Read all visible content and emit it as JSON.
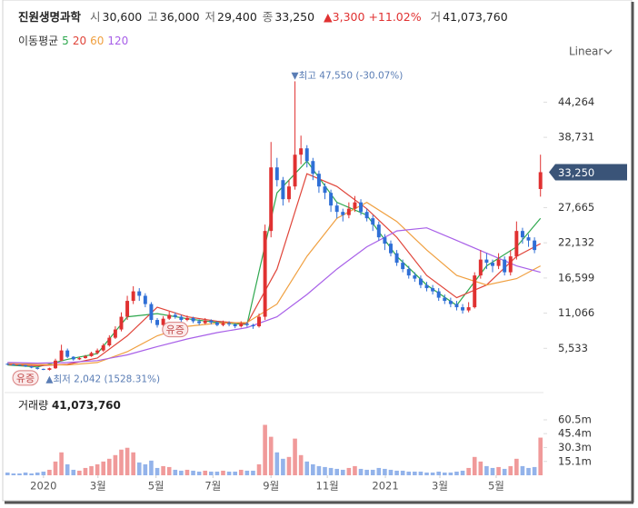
{
  "chart_data": {
    "type": "candlestick",
    "name": "진원생명과학",
    "header": [
      {
        "label": "시",
        "value": "30,600"
      },
      {
        "label": "고",
        "value": "36,000"
      },
      {
        "label": "저",
        "value": "29,400"
      },
      {
        "label": "종",
        "value": "33,250"
      }
    ],
    "change_arrow": "▲",
    "change": "3,300",
    "change_pct": "+11.02%",
    "volume_short_label": "거",
    "volume_today": "41,073,760",
    "ma_title": "이동평균",
    "scale_mode": "Linear",
    "up_color": "#e03131",
    "down_color": "#2f6fd6",
    "volume_up_color": "#f09a9a",
    "volume_down_color": "#93b3ea",
    "open": [
      3100,
      3000,
      2950,
      2900,
      2700,
      2500,
      2300,
      2150,
      2400,
      3600,
      5200,
      4200,
      3800,
      4000,
      4300,
      4800,
      5200,
      6000,
      7200,
      8500,
      10500,
      13000,
      14500,
      13800,
      12500,
      10000,
      9200,
      10200,
      10800,
      10500,
      10000,
      10300,
      9800,
      9500,
      9900,
      9600,
      9200,
      9500,
      9300,
      9000,
      9400,
      9200,
      9000,
      10500,
      24000,
      34000,
      32000,
      29000,
      31000,
      36000,
      37000,
      35000,
      33000,
      31000,
      30000,
      28000,
      27000,
      26500,
      27500,
      28500,
      27000,
      26000,
      25000,
      23000,
      22000,
      20500,
      19000,
      18000,
      17000,
      16500,
      15500,
      15000,
      14500,
      13500,
      13000,
      12500,
      12000,
      11500,
      12000,
      17000,
      19500,
      19000,
      18500,
      19500,
      17500,
      20000,
      24000,
      23000,
      22500,
      30600
    ],
    "high": [
      3200,
      3100,
      3000,
      2950,
      2750,
      2550,
      2350,
      2500,
      3900,
      6100,
      5500,
      4300,
      4200,
      4500,
      5000,
      5500,
      6300,
      7600,
      9000,
      11200,
      13800,
      15300,
      15000,
      14200,
      12800,
      10300,
      10600,
      11300,
      11200,
      10800,
      10700,
      10500,
      10100,
      10300,
      10100,
      9800,
      9900,
      9800,
      9500,
      9800,
      9700,
      9400,
      11000,
      25000,
      38000,
      35500,
      32500,
      32000,
      47550,
      39000,
      37500,
      35500,
      33500,
      31500,
      30500,
      28500,
      27500,
      28500,
      29500,
      29000,
      27500,
      26500,
      25500,
      23500,
      22500,
      21000,
      19500,
      18500,
      17500,
      17000,
      16000,
      15500,
      15000,
      14000,
      13500,
      13000,
      12500,
      12800,
      17500,
      21000,
      20500,
      19500,
      20500,
      20000,
      21000,
      25500,
      24500,
      23500,
      23000,
      36000
    ],
    "low": [
      2900,
      2850,
      2800,
      2600,
      2400,
      2200,
      2100,
      2042,
      2300,
      3500,
      4000,
      3600,
      3700,
      3900,
      4200,
      4600,
      5000,
      5800,
      7000,
      8200,
      10000,
      12500,
      13000,
      12000,
      9500,
      8800,
      9000,
      10000,
      10200,
      9700,
      9800,
      9500,
      9200,
      9300,
      9300,
      9000,
      9000,
      9000,
      8700,
      8800,
      8900,
      8600,
      8800,
      10000,
      23000,
      31000,
      28000,
      28500,
      30500,
      34500,
      34000,
      32000,
      30000,
      29000,
      27000,
      26000,
      25500,
      26000,
      27000,
      26500,
      25500,
      24000,
      22500,
      21000,
      20000,
      18500,
      17500,
      16500,
      16000,
      15000,
      14500,
      14000,
      13000,
      12500,
      12000,
      11500,
      11000,
      11200,
      11800,
      16500,
      18000,
      17500,
      18000,
      17000,
      17000,
      19500,
      22000,
      21500,
      20500,
      29400
    ],
    "close": [
      3000,
      2950,
      2900,
      2700,
      2500,
      2300,
      2150,
      2400,
      3600,
      5200,
      4200,
      3800,
      4000,
      4300,
      4800,
      5200,
      6000,
      7200,
      8500,
      10500,
      13000,
      14500,
      13800,
      12500,
      10000,
      9200,
      10200,
      10800,
      10500,
      10000,
      10300,
      9800,
      9500,
      9900,
      9600,
      9200,
      9500,
      9300,
      9000,
      9400,
      9200,
      9000,
      10500,
      24000,
      34000,
      32000,
      29000,
      31000,
      36000,
      37000,
      35000,
      33000,
      31000,
      30000,
      28000,
      27000,
      26500,
      27500,
      28500,
      27000,
      26000,
      25000,
      23000,
      22000,
      20500,
      19000,
      18000,
      17000,
      16500,
      15500,
      15000,
      14500,
      13500,
      13000,
      12500,
      12000,
      11500,
      12000,
      17000,
      19500,
      19000,
      18500,
      19500,
      17500,
      20000,
      24000,
      23000,
      22500,
      21000,
      33250
    ],
    "volume": [
      3000000,
      2000000,
      2000000,
      3000000,
      2000000,
      3000000,
      4000000,
      6000000,
      15000000,
      25000000,
      12000000,
      6000000,
      5000000,
      8000000,
      10000000,
      12000000,
      15000000,
      18000000,
      22000000,
      28000000,
      30000000,
      25000000,
      14000000,
      12000000,
      16000000,
      8000000,
      10000000,
      9000000,
      6000000,
      5000000,
      6000000,
      5000000,
      4000000,
      5000000,
      4000000,
      4000000,
      5000000,
      4000000,
      4000000,
      6000000,
      5000000,
      5000000,
      12000000,
      55000000,
      42000000,
      25000000,
      18000000,
      20000000,
      40000000,
      22000000,
      15000000,
      12000000,
      10000000,
      9000000,
      8000000,
      7000000,
      6000000,
      8000000,
      10000000,
      7000000,
      6000000,
      6000000,
      8000000,
      7000000,
      6000000,
      5000000,
      5000000,
      4000000,
      4000000,
      4000000,
      3000000,
      3000000,
      4000000,
      3000000,
      3000000,
      4000000,
      5000000,
      8000000,
      20000000,
      15000000,
      10000000,
      8000000,
      9000000,
      7000000,
      10000000,
      18000000,
      10000000,
      8000000,
      9000000,
      41073760
    ],
    "moving_averages": [
      {
        "name": "5",
        "color": "#2fa84f",
        "x": [
          0,
          5,
          10,
          15,
          20,
          25,
          30,
          35,
          40,
          45,
          50,
          55,
          60,
          65,
          70,
          75,
          80,
          85,
          89
        ],
        "values": [
          2900,
          2600,
          3800,
          4700,
          10500,
          11000,
          10200,
          9600,
          9300,
          30000,
          35000,
          28500,
          26500,
          20000,
          15500,
          12300,
          18500,
          21500,
          26000
        ]
      },
      {
        "name": "20",
        "color": "#e0453a",
        "x": [
          0,
          5,
          10,
          15,
          20,
          25,
          30,
          35,
          40,
          45,
          50,
          55,
          60,
          65,
          70,
          75,
          80,
          85,
          89
        ],
        "values": [
          3000,
          2800,
          3000,
          4000,
          7500,
          12000,
          10500,
          9800,
          9400,
          18000,
          33000,
          31000,
          27500,
          23000,
          17000,
          13500,
          15500,
          20000,
          22000
        ]
      },
      {
        "name": "60",
        "color": "#f0a040",
        "x": [
          0,
          5,
          10,
          15,
          20,
          25,
          30,
          35,
          40,
          45,
          50,
          55,
          60,
          65,
          70,
          75,
          80,
          85,
          89
        ],
        "values": [
          3200,
          3000,
          2900,
          3300,
          5000,
          7500,
          9000,
          9500,
          9600,
          12500,
          20000,
          26000,
          28500,
          25500,
          21000,
          17000,
          15500,
          16500,
          18500
        ]
      },
      {
        "name": "120",
        "color": "#a860e8",
        "x": [
          0,
          5,
          10,
          15,
          20,
          25,
          30,
          35,
          40,
          45,
          50,
          55,
          60,
          65,
          70,
          75,
          80,
          85,
          89
        ],
        "values": [
          3300,
          3200,
          3300,
          3600,
          4500,
          5800,
          7000,
          8000,
          8800,
          10500,
          14000,
          18000,
          21500,
          24000,
          24500,
          22500,
          20500,
          18500,
          17500
        ]
      }
    ],
    "ylim": [
      0,
      50330
    ],
    "yticks": [
      {
        "value": 5533,
        "label": "5,533"
      },
      {
        "value": 11066,
        "label": "11,066"
      },
      {
        "value": 16599,
        "label": "16,599"
      },
      {
        "value": 22132,
        "label": "22,132"
      },
      {
        "value": 27665,
        "label": "27,665"
      },
      {
        "value": 38731,
        "label": "38,731"
      },
      {
        "value": 44264,
        "label": "44,264"
      }
    ],
    "last_price": {
      "value": 33250,
      "label": "33,250",
      "color": "#3a5478"
    },
    "high_marker": {
      "x": 48,
      "value": 47550,
      "label": "▼최고 47,550 (-30.07%)"
    },
    "low_marker": {
      "x": 7,
      "value": 2042,
      "label": "▲최저 2,042 (1528.31%)"
    },
    "events": [
      {
        "x": 28,
        "label": "유증"
      },
      {
        "x": 3,
        "label": "유증"
      }
    ],
    "volume_title": "거래량",
    "volume_value": "41,073,760",
    "vylim": [
      0,
      67400000
    ],
    "vyticks": [
      {
        "value": 15100000,
        "label": "15.1m"
      },
      {
        "value": 30300000,
        "label": "30.3m"
      },
      {
        "value": 45400000,
        "label": "45.4m"
      },
      {
        "value": 60500000,
        "label": "60.5m"
      }
    ],
    "xticks": [
      {
        "value": 6.0,
        "label": "2020"
      },
      {
        "value": 15.1,
        "label": "3월"
      },
      {
        "value": 24.8,
        "label": "5월"
      },
      {
        "value": 34.3,
        "label": "7월"
      },
      {
        "value": 44.0,
        "label": "9월"
      },
      {
        "value": 53.4,
        "label": "11월"
      },
      {
        "value": 63.1,
        "label": "2021"
      },
      {
        "value": 72.2,
        "label": "3월"
      },
      {
        "value": 81.6,
        "label": "5월"
      }
    ]
  }
}
